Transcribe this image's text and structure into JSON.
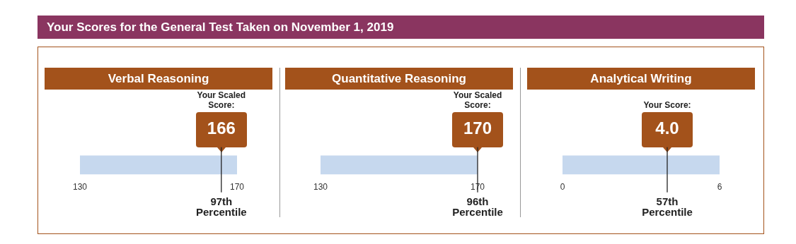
{
  "chart_data": [
    {
      "type": "other",
      "title": "Your Scores for the General Test Taken on November 1, 2019"
    },
    {
      "type": "bar",
      "orientation": "horizontal",
      "title": "Verbal Reasoning",
      "categories": [
        null
      ],
      "values": [
        170
      ],
      "color": "#c6d8ee",
      "xlim": [
        130,
        170
      ],
      "xticks": [
        130,
        170
      ],
      "ref_lines": [
        {
          "axis": "x",
          "value": 166,
          "label": "166",
          "color": "#222222"
        }
      ],
      "annotations": [
        "Your Scaled Score:",
        "97th Percentile"
      ]
    },
    {
      "type": "bar",
      "orientation": "horizontal",
      "title": "Quantitative Reasoning",
      "categories": [
        null
      ],
      "values": [
        170
      ],
      "color": "#c6d8ee",
      "xlim": [
        130,
        170
      ],
      "xticks": [
        130,
        170
      ],
      "ref_lines": [
        {
          "axis": "x",
          "value": 170,
          "label": "170",
          "color": "#222222"
        }
      ],
      "annotations": [
        "Your Scaled Score:",
        "96th Percentile"
      ]
    },
    {
      "type": "bar",
      "orientation": "horizontal",
      "title": "Analytical Writing",
      "categories": [
        null
      ],
      "values": [
        6
      ],
      "color": "#c6d8ee",
      "xlim": [
        0,
        6
      ],
      "xticks": [
        0,
        6
      ],
      "ref_lines": [
        {
          "axis": "x",
          "value": 4.0,
          "label": "4.0",
          "color": "#222222"
        }
      ],
      "annotations": [
        "Your Score:",
        "57th Percentile"
      ]
    }
  ]
}
